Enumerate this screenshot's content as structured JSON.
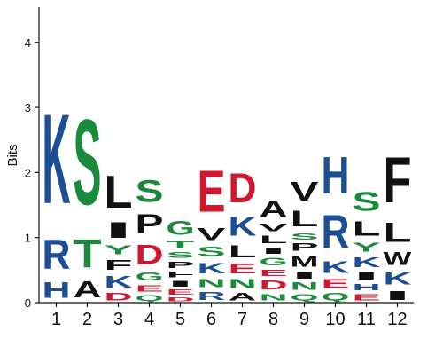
{
  "chart_data": {
    "type": "sequence-logo",
    "ylabel": "Bits",
    "ylim": [
      0,
      4.5
    ],
    "yticks": [
      "0",
      "1",
      "2",
      "3",
      "4"
    ],
    "colors": {
      "blue": "#1c4e95",
      "green": "#1c8a3c",
      "red": "#d0172f",
      "black": "#111111"
    },
    "positions": [
      {
        "label": "1",
        "stack": [
          {
            "letter": "H",
            "bits": 0.38,
            "color": "blue"
          },
          {
            "letter": "R",
            "bits": 0.72,
            "color": "blue"
          },
          {
            "letter": "K",
            "bits": 2.2,
            "color": "blue"
          }
        ]
      },
      {
        "label": "2",
        "stack": [
          {
            "letter": "A",
            "bits": 0.4,
            "color": "black"
          },
          {
            "letter": "T",
            "bits": 0.7,
            "color": "green"
          },
          {
            "letter": "S",
            "bits": 2.1,
            "color": "green"
          }
        ]
      },
      {
        "label": "3",
        "stack": [
          {
            "letter": "D",
            "bits": 0.18,
            "color": "red"
          },
          {
            "letter": "K",
            "bits": 0.28,
            "color": "blue"
          },
          {
            "letter": "F",
            "bits": 0.24,
            "color": "black"
          },
          {
            "letter": "Y",
            "bits": 0.22,
            "color": "green"
          },
          {
            "letter": "I",
            "bits": 0.38,
            "color": "black"
          },
          {
            "letter": "L",
            "bits": 0.8,
            "color": "black"
          }
        ]
      },
      {
        "label": "4",
        "stack": [
          {
            "letter": "Q",
            "bits": 0.14,
            "color": "green"
          },
          {
            "letter": "E",
            "bits": 0.16,
            "color": "red"
          },
          {
            "letter": "G",
            "bits": 0.2,
            "color": "green"
          },
          {
            "letter": "D",
            "bits": 0.48,
            "color": "red"
          },
          {
            "letter": "P",
            "bits": 0.46,
            "color": "black"
          },
          {
            "letter": "S",
            "bits": 0.54,
            "color": "green"
          }
        ]
      },
      {
        "label": "5",
        "stack": [
          {
            "letter": "D",
            "bits": 0.1,
            "color": "red"
          },
          {
            "letter": "E",
            "bits": 0.12,
            "color": "red"
          },
          {
            "letter": "I",
            "bits": 0.14,
            "color": "black"
          },
          {
            "letter": "F",
            "bits": 0.14,
            "color": "black"
          },
          {
            "letter": "P",
            "bits": 0.16,
            "color": "black"
          },
          {
            "letter": "S",
            "bits": 0.14,
            "color": "green"
          },
          {
            "letter": "T",
            "bits": 0.18,
            "color": "green"
          },
          {
            "letter": "G",
            "bits": 0.34,
            "color": "green"
          }
        ]
      },
      {
        "label": "6",
        "stack": [
          {
            "letter": "R",
            "bits": 0.2,
            "color": "blue"
          },
          {
            "letter": "N",
            "bits": 0.2,
            "color": "green"
          },
          {
            "letter": "K",
            "bits": 0.26,
            "color": "blue"
          },
          {
            "letter": "S",
            "bits": 0.24,
            "color": "green"
          },
          {
            "letter": "V",
            "bits": 0.3,
            "color": "black"
          },
          {
            "letter": "E",
            "bits": 1.02,
            "color": "red"
          }
        ]
      },
      {
        "label": "7",
        "stack": [
          {
            "letter": "A",
            "bits": 0.18,
            "color": "black"
          },
          {
            "letter": "N",
            "bits": 0.22,
            "color": "green"
          },
          {
            "letter": "E",
            "bits": 0.24,
            "color": "red"
          },
          {
            "letter": "L",
            "bits": 0.3,
            "color": "black"
          },
          {
            "letter": "K",
            "bits": 0.46,
            "color": "blue"
          },
          {
            "letter": "D",
            "bits": 0.72,
            "color": "red"
          }
        ]
      },
      {
        "label": "8",
        "stack": [
          {
            "letter": "N",
            "bits": 0.16,
            "color": "green"
          },
          {
            "letter": "D",
            "bits": 0.22,
            "color": "red"
          },
          {
            "letter": "E",
            "bits": 0.16,
            "color": "red"
          },
          {
            "letter": "G",
            "bits": 0.18,
            "color": "green"
          },
          {
            "letter": "I",
            "bits": 0.16,
            "color": "black"
          },
          {
            "letter": "L",
            "bits": 0.18,
            "color": "black"
          },
          {
            "letter": "V",
            "bits": 0.18,
            "color": "black"
          },
          {
            "letter": "A",
            "bits": 0.4,
            "color": "black"
          }
        ]
      },
      {
        "label": "9",
        "stack": [
          {
            "letter": "Q",
            "bits": 0.16,
            "color": "green"
          },
          {
            "letter": "N",
            "bits": 0.18,
            "color": "green"
          },
          {
            "letter": "I",
            "bits": 0.16,
            "color": "black"
          },
          {
            "letter": "M",
            "bits": 0.26,
            "color": "black"
          },
          {
            "letter": "P",
            "bits": 0.18,
            "color": "black"
          },
          {
            "letter": "S",
            "bits": 0.16,
            "color": "green"
          },
          {
            "letter": "L",
            "bits": 0.38,
            "color": "black"
          },
          {
            "letter": "V",
            "bits": 0.46,
            "color": "black"
          }
        ]
      },
      {
        "label": "10",
        "stack": [
          {
            "letter": "Q",
            "bits": 0.18,
            "color": "green"
          },
          {
            "letter": "E",
            "bits": 0.22,
            "color": "red"
          },
          {
            "letter": "K",
            "bits": 0.28,
            "color": "blue"
          },
          {
            "letter": "R",
            "bits": 0.82,
            "color": "blue"
          },
          {
            "letter": "H",
            "bits": 0.9,
            "color": "blue"
          }
        ]
      },
      {
        "label": "11",
        "stack": [
          {
            "letter": "E",
            "bits": 0.16,
            "color": "red"
          },
          {
            "letter": "H",
            "bits": 0.16,
            "color": "blue"
          },
          {
            "letter": "I",
            "bits": 0.18,
            "color": "black"
          },
          {
            "letter": "K",
            "bits": 0.24,
            "color": "blue"
          },
          {
            "letter": "Y",
            "bits": 0.22,
            "color": "green"
          },
          {
            "letter": "L",
            "bits": 0.36,
            "color": "black"
          },
          {
            "letter": "S",
            "bits": 0.46,
            "color": "green"
          }
        ]
      },
      {
        "label": "12",
        "stack": [
          {
            "letter": "I",
            "bits": 0.22,
            "color": "black"
          },
          {
            "letter": "K",
            "bits": 0.3,
            "color": "blue"
          },
          {
            "letter": "W",
            "bits": 0.32,
            "color": "black"
          },
          {
            "letter": "L",
            "bits": 0.48,
            "color": "black"
          },
          {
            "letter": "F",
            "bits": 1.12,
            "color": "black"
          }
        ]
      }
    ]
  }
}
